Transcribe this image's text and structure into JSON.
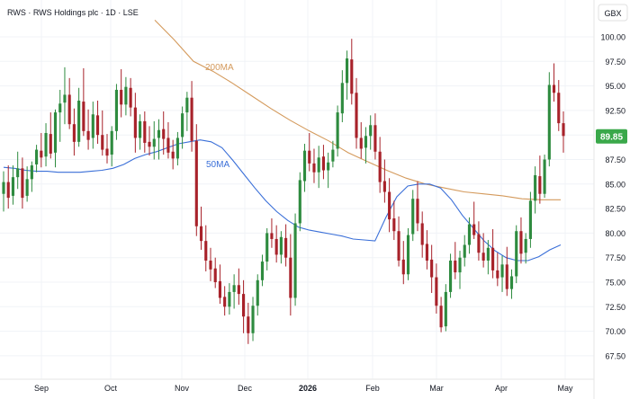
{
  "header": {
    "title": "RWS · RWS Holdings plc · 1D · LSE",
    "currency": "GBX"
  },
  "colors": {
    "up": "#2e8b3f",
    "down": "#a8222a",
    "ma50": "#3a6fd8",
    "ma200": "#d49a5c",
    "price_badge": "#3aa84a"
  },
  "chart_data": {
    "type": "candlestick",
    "title": "RWS · RWS Holdings plc · 1D · LSE",
    "ylabel": "GBX",
    "ylim": [
      66.0,
      101.5
    ],
    "y_ticks": [
      "100.00",
      "97.50",
      "95.00",
      "92.50",
      "90.00",
      "87.50",
      "85.00",
      "82.50",
      "80.00",
      "77.50",
      "75.00",
      "72.50",
      "70.00",
      "67.50"
    ],
    "x_ticks": [
      "Sep",
      "Oct",
      "Nov",
      "Dec",
      "2026",
      "Feb",
      "Mar",
      "Apr",
      "May"
    ],
    "last_price": "89.85",
    "series": [
      {
        "name": "50MA",
        "values": [
          86.7,
          86.6,
          86.4,
          86.3,
          86.3,
          86.2,
          86.2,
          86.2,
          86.3,
          86.4,
          86.6,
          87.0,
          87.6,
          88.0,
          88.3,
          88.7,
          89.1,
          89.3,
          89.5,
          89.3,
          88.7,
          87.4,
          86.0,
          84.6,
          83.3,
          82.2,
          81.3,
          80.6,
          80.3,
          80.1,
          79.9,
          79.7,
          79.4,
          79.3,
          79.2,
          81.6,
          83.7,
          84.8,
          85.0,
          85.0,
          84.6,
          83.4,
          81.8,
          80.5,
          79.2,
          78.2,
          77.5,
          77.2,
          77.2,
          77.6,
          78.3,
          78.8
        ]
      },
      {
        "name": "200MA",
        "values": [
          101.7,
          99.7,
          97.5,
          96.5,
          95.3,
          94.0,
          92.7,
          91.5,
          90.4,
          89.4,
          88.2,
          87.3,
          86.4,
          85.6,
          85.0,
          84.6,
          84.2,
          84.0,
          83.8,
          83.5,
          83.4,
          83.4
        ]
      }
    ],
    "candles": [
      {
        "o": 84.0,
        "h": 86.3,
        "l": 82.2,
        "c": 85.2
      },
      {
        "o": 85.2,
        "h": 86.9,
        "l": 82.5,
        "c": 83.6
      },
      {
        "o": 83.8,
        "h": 86.9,
        "l": 82.9,
        "c": 85.7
      },
      {
        "o": 85.7,
        "h": 88.3,
        "l": 84.5,
        "c": 86.6
      },
      {
        "o": 86.6,
        "h": 87.7,
        "l": 82.5,
        "c": 83.6
      },
      {
        "o": 83.8,
        "h": 86.8,
        "l": 83.2,
        "c": 85.5
      },
      {
        "o": 85.5,
        "h": 87.3,
        "l": 84.2,
        "c": 86.9
      },
      {
        "o": 87.0,
        "h": 89.0,
        "l": 86.2,
        "c": 88.5
      },
      {
        "o": 88.4,
        "h": 90.2,
        "l": 86.7,
        "c": 87.7
      },
      {
        "o": 87.8,
        "h": 91.2,
        "l": 86.8,
        "c": 90.2
      },
      {
        "o": 90.1,
        "h": 92.3,
        "l": 87.6,
        "c": 88.1
      },
      {
        "o": 88.2,
        "h": 92.6,
        "l": 86.7,
        "c": 92.3
      },
      {
        "o": 92.3,
        "h": 94.6,
        "l": 89.3,
        "c": 93.2
      },
      {
        "o": 93.3,
        "h": 96.9,
        "l": 91.1,
        "c": 94.1
      },
      {
        "o": 94.1,
        "h": 95.8,
        "l": 90.6,
        "c": 91.1
      },
      {
        "o": 91.1,
        "h": 92.7,
        "l": 87.9,
        "c": 89.3
      },
      {
        "o": 89.3,
        "h": 94.8,
        "l": 88.8,
        "c": 93.5
      },
      {
        "o": 93.4,
        "h": 96.8,
        "l": 89.9,
        "c": 90.4
      },
      {
        "o": 90.4,
        "h": 92.6,
        "l": 88.5,
        "c": 89.5
      },
      {
        "o": 89.7,
        "h": 93.4,
        "l": 88.6,
        "c": 92.1
      },
      {
        "o": 92.0,
        "h": 93.5,
        "l": 89.1,
        "c": 90.0
      },
      {
        "o": 90.0,
        "h": 92.5,
        "l": 87.9,
        "c": 88.5
      },
      {
        "o": 88.6,
        "h": 90.1,
        "l": 87.1,
        "c": 87.9
      },
      {
        "o": 88.0,
        "h": 90.9,
        "l": 86.8,
        "c": 90.4
      },
      {
        "o": 90.4,
        "h": 95.2,
        "l": 89.5,
        "c": 94.6
      },
      {
        "o": 94.6,
        "h": 96.7,
        "l": 91.8,
        "c": 93.1
      },
      {
        "o": 93.1,
        "h": 95.9,
        "l": 92.0,
        "c": 94.9
      },
      {
        "o": 94.8,
        "h": 95.8,
        "l": 91.9,
        "c": 92.8
      },
      {
        "o": 92.8,
        "h": 94.3,
        "l": 88.2,
        "c": 89.7
      },
      {
        "o": 89.7,
        "h": 92.1,
        "l": 88.5,
        "c": 91.4
      },
      {
        "o": 91.4,
        "h": 92.4,
        "l": 88.2,
        "c": 89.2
      },
      {
        "o": 89.3,
        "h": 90.9,
        "l": 87.9,
        "c": 88.8
      },
      {
        "o": 88.8,
        "h": 91.4,
        "l": 87.5,
        "c": 89.6
      },
      {
        "o": 89.7,
        "h": 91.6,
        "l": 87.5,
        "c": 90.5
      },
      {
        "o": 90.6,
        "h": 92.4,
        "l": 88.0,
        "c": 89.6
      },
      {
        "o": 89.7,
        "h": 91.3,
        "l": 87.6,
        "c": 88.2
      },
      {
        "o": 88.3,
        "h": 89.5,
        "l": 86.5,
        "c": 87.6
      },
      {
        "o": 87.6,
        "h": 90.3,
        "l": 86.9,
        "c": 89.7
      },
      {
        "o": 89.8,
        "h": 92.9,
        "l": 88.6,
        "c": 92.2
      },
      {
        "o": 92.3,
        "h": 94.4,
        "l": 90.4,
        "c": 93.8
      },
      {
        "o": 93.8,
        "h": 95.5,
        "l": 88.3,
        "c": 89.4
      },
      {
        "o": 89.4,
        "h": 91.1,
        "l": 79.7,
        "c": 80.7
      },
      {
        "o": 80.7,
        "h": 82.7,
        "l": 78.3,
        "c": 79.2
      },
      {
        "o": 79.2,
        "h": 80.8,
        "l": 76.1,
        "c": 77.2
      },
      {
        "o": 77.2,
        "h": 78.5,
        "l": 75.1,
        "c": 76.3
      },
      {
        "o": 76.4,
        "h": 77.5,
        "l": 74.4,
        "c": 75.0
      },
      {
        "o": 75.1,
        "h": 76.8,
        "l": 72.8,
        "c": 73.4
      },
      {
        "o": 73.5,
        "h": 74.6,
        "l": 71.6,
        "c": 72.5
      },
      {
        "o": 72.5,
        "h": 74.9,
        "l": 71.7,
        "c": 74.0
      },
      {
        "o": 74.0,
        "h": 75.8,
        "l": 72.3,
        "c": 74.7
      },
      {
        "o": 74.7,
        "h": 76.4,
        "l": 72.7,
        "c": 73.8
      },
      {
        "o": 73.8,
        "h": 75.2,
        "l": 69.8,
        "c": 71.5
      },
      {
        "o": 71.5,
        "h": 72.9,
        "l": 68.7,
        "c": 69.8
      },
      {
        "o": 69.8,
        "h": 73.5,
        "l": 69.0,
        "c": 72.6
      },
      {
        "o": 72.6,
        "h": 75.8,
        "l": 71.6,
        "c": 75.2
      },
      {
        "o": 75.2,
        "h": 77.8,
        "l": 74.6,
        "c": 77.1
      },
      {
        "o": 77.1,
        "h": 80.5,
        "l": 76.2,
        "c": 80.0
      },
      {
        "o": 80.0,
        "h": 81.5,
        "l": 78.5,
        "c": 79.4
      },
      {
        "o": 79.4,
        "h": 80.8,
        "l": 77.0,
        "c": 77.8
      },
      {
        "o": 77.8,
        "h": 80.2,
        "l": 76.9,
        "c": 79.6
      },
      {
        "o": 79.5,
        "h": 80.9,
        "l": 76.6,
        "c": 77.5
      },
      {
        "o": 77.5,
        "h": 79.9,
        "l": 71.6,
        "c": 73.4
      },
      {
        "o": 73.4,
        "h": 82.0,
        "l": 72.6,
        "c": 81.0
      },
      {
        "o": 81.0,
        "h": 86.2,
        "l": 80.2,
        "c": 85.4
      },
      {
        "o": 85.3,
        "h": 89.1,
        "l": 84.2,
        "c": 88.4
      },
      {
        "o": 88.4,
        "h": 90.2,
        "l": 86.3,
        "c": 87.1
      },
      {
        "o": 87.1,
        "h": 88.6,
        "l": 85.1,
        "c": 86.2
      },
      {
        "o": 86.2,
        "h": 88.9,
        "l": 84.6,
        "c": 87.7
      },
      {
        "o": 87.8,
        "h": 89.0,
        "l": 85.5,
        "c": 86.4
      },
      {
        "o": 86.4,
        "h": 88.2,
        "l": 84.6,
        "c": 87.2
      },
      {
        "o": 87.3,
        "h": 89.4,
        "l": 86.7,
        "c": 88.5
      },
      {
        "o": 88.6,
        "h": 93.0,
        "l": 87.8,
        "c": 92.3
      },
      {
        "o": 92.2,
        "h": 96.6,
        "l": 91.3,
        "c": 95.3
      },
      {
        "o": 95.3,
        "h": 98.6,
        "l": 93.6,
        "c": 97.8
      },
      {
        "o": 97.7,
        "h": 99.8,
        "l": 93.1,
        "c": 94.2
      },
      {
        "o": 94.3,
        "h": 95.8,
        "l": 88.6,
        "c": 89.7
      },
      {
        "o": 89.7,
        "h": 91.3,
        "l": 87.6,
        "c": 88.6
      },
      {
        "o": 88.7,
        "h": 90.8,
        "l": 87.1,
        "c": 89.9
      },
      {
        "o": 89.9,
        "h": 92.0,
        "l": 88.5,
        "c": 91.0
      },
      {
        "o": 91.0,
        "h": 92.2,
        "l": 87.5,
        "c": 88.3
      },
      {
        "o": 88.3,
        "h": 89.8,
        "l": 84.1,
        "c": 85.2
      },
      {
        "o": 85.3,
        "h": 87.5,
        "l": 83.1,
        "c": 84.2
      },
      {
        "o": 84.2,
        "h": 85.6,
        "l": 80.1,
        "c": 81.4
      },
      {
        "o": 81.5,
        "h": 83.3,
        "l": 79.3,
        "c": 80.2
      },
      {
        "o": 80.2,
        "h": 81.7,
        "l": 76.6,
        "c": 77.2
      },
      {
        "o": 77.3,
        "h": 79.2,
        "l": 74.8,
        "c": 75.8
      },
      {
        "o": 75.8,
        "h": 80.5,
        "l": 75.2,
        "c": 79.8
      },
      {
        "o": 79.9,
        "h": 84.4,
        "l": 79.2,
        "c": 83.5
      },
      {
        "o": 83.5,
        "h": 85.3,
        "l": 80.2,
        "c": 81.0
      },
      {
        "o": 81.0,
        "h": 82.2,
        "l": 77.5,
        "c": 78.8
      },
      {
        "o": 78.9,
        "h": 80.3,
        "l": 76.3,
        "c": 77.2
      },
      {
        "o": 77.3,
        "h": 78.8,
        "l": 73.9,
        "c": 75.5
      },
      {
        "o": 75.5,
        "h": 76.9,
        "l": 71.8,
        "c": 72.6
      },
      {
        "o": 72.6,
        "h": 73.5,
        "l": 69.9,
        "c": 70.4
      },
      {
        "o": 70.5,
        "h": 74.8,
        "l": 70.0,
        "c": 74.0
      },
      {
        "o": 74.0,
        "h": 77.9,
        "l": 73.4,
        "c": 77.2
      },
      {
        "o": 77.2,
        "h": 79.1,
        "l": 75.3,
        "c": 76.0
      },
      {
        "o": 76.0,
        "h": 78.2,
        "l": 74.3,
        "c": 77.5
      },
      {
        "o": 77.5,
        "h": 79.8,
        "l": 76.6,
        "c": 78.8
      },
      {
        "o": 78.8,
        "h": 81.6,
        "l": 77.9,
        "c": 80.9
      },
      {
        "o": 80.9,
        "h": 83.2,
        "l": 79.4,
        "c": 79.8
      },
      {
        "o": 79.9,
        "h": 81.2,
        "l": 77.2,
        "c": 78.0
      },
      {
        "o": 78.0,
        "h": 80.0,
        "l": 76.5,
        "c": 77.2
      },
      {
        "o": 77.2,
        "h": 79.3,
        "l": 75.8,
        "c": 78.5
      },
      {
        "o": 78.5,
        "h": 80.4,
        "l": 75.4,
        "c": 76.2
      },
      {
        "o": 76.2,
        "h": 78.0,
        "l": 74.6,
        "c": 75.4
      },
      {
        "o": 75.5,
        "h": 77.7,
        "l": 74.0,
        "c": 76.8
      },
      {
        "o": 76.8,
        "h": 78.6,
        "l": 73.6,
        "c": 74.3
      },
      {
        "o": 74.3,
        "h": 76.3,
        "l": 73.3,
        "c": 75.6
      },
      {
        "o": 75.6,
        "h": 80.8,
        "l": 74.9,
        "c": 80.2
      },
      {
        "o": 80.2,
        "h": 81.6,
        "l": 76.9,
        "c": 77.9
      },
      {
        "o": 78.0,
        "h": 80.0,
        "l": 76.9,
        "c": 79.4
      },
      {
        "o": 79.4,
        "h": 84.2,
        "l": 78.5,
        "c": 83.3
      },
      {
        "o": 83.3,
        "h": 86.8,
        "l": 82.0,
        "c": 85.9
      },
      {
        "o": 85.8,
        "h": 87.9,
        "l": 83.0,
        "c": 84.0
      },
      {
        "o": 84.0,
        "h": 88.0,
        "l": 83.6,
        "c": 87.5
      },
      {
        "o": 87.5,
        "h": 96.4,
        "l": 86.8,
        "c": 95.1
      },
      {
        "o": 95.1,
        "h": 97.3,
        "l": 93.4,
        "c": 94.3
      },
      {
        "o": 94.3,
        "h": 95.6,
        "l": 90.4,
        "c": 91.2
      },
      {
        "o": 91.2,
        "h": 92.4,
        "l": 88.2,
        "c": 89.9
      }
    ]
  }
}
